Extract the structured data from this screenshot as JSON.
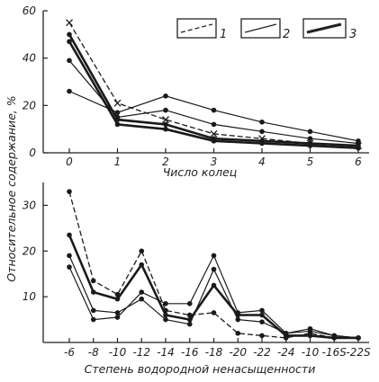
{
  "y_label": "Относительное содержание, %",
  "legend": [
    {
      "label": "1",
      "style": "dashed"
    },
    {
      "label": "2",
      "style": "thin"
    },
    {
      "label": "3",
      "style": "thick"
    }
  ],
  "chart_data": [
    {
      "type": "line",
      "xlabel": "Число колец",
      "categories": [
        "0",
        "1",
        "2",
        "3",
        "4",
        "5",
        "6"
      ],
      "y_ticks": [
        "0",
        "20",
        "40",
        "60"
      ],
      "ylim": [
        0,
        60
      ],
      "series": [
        {
          "name": "1",
          "style": "dashed",
          "marker": "x",
          "values": [
            55,
            21,
            14,
            8,
            6,
            4,
            3
          ]
        },
        {
          "name": "2",
          "style": "thin",
          "marker": "dot",
          "values": [
            26,
            17,
            24,
            18,
            13,
            9,
            5
          ]
        },
        {
          "name": "2",
          "style": "thin",
          "marker": "dot",
          "values": [
            39,
            15,
            18,
            12,
            9,
            6,
            4
          ]
        },
        {
          "name": "3",
          "style": "thick",
          "marker": "dot",
          "values": [
            47,
            12,
            10,
            5,
            4,
            3,
            2
          ]
        },
        {
          "name": "3",
          "style": "thick",
          "marker": "dot",
          "values": [
            50,
            14,
            12,
            6,
            5,
            4,
            3
          ]
        }
      ]
    },
    {
      "type": "line",
      "xlabel": "Степень водородной ненасыщенности",
      "categories": [
        "-6",
        "-8",
        "-10",
        "-12",
        "-14",
        "-16",
        "-18",
        "-20",
        "-22",
        "-24",
        "-10",
        "-16S",
        "-22S"
      ],
      "y_ticks": [
        "10",
        "20",
        "30"
      ],
      "ylim": [
        0,
        35
      ],
      "series": [
        {
          "name": "1",
          "style": "dashed",
          "marker": "dot",
          "values": [
            33,
            13.5,
            10.5,
            20,
            7,
            6,
            6.5,
            2,
            1.5,
            1,
            2,
            1,
            1
          ]
        },
        {
          "name": "2",
          "style": "thin",
          "marker": "dot",
          "values": [
            16.5,
            5,
            5.5,
            11,
            8.5,
            8.5,
            19,
            6.5,
            7,
            2,
            3,
            1.5,
            1
          ]
        },
        {
          "name": "2",
          "style": "thin",
          "marker": "dot",
          "values": [
            19,
            7,
            6.5,
            9.5,
            5,
            4,
            16,
            5,
            4.5,
            2,
            2.5,
            1.5,
            1
          ]
        },
        {
          "name": "3",
          "style": "thick",
          "marker": "dot",
          "values": [
            23.5,
            11,
            9.5,
            17,
            6,
            5,
            12.5,
            6,
            6,
            1.5,
            1.5,
            1,
            1
          ]
        }
      ]
    }
  ]
}
